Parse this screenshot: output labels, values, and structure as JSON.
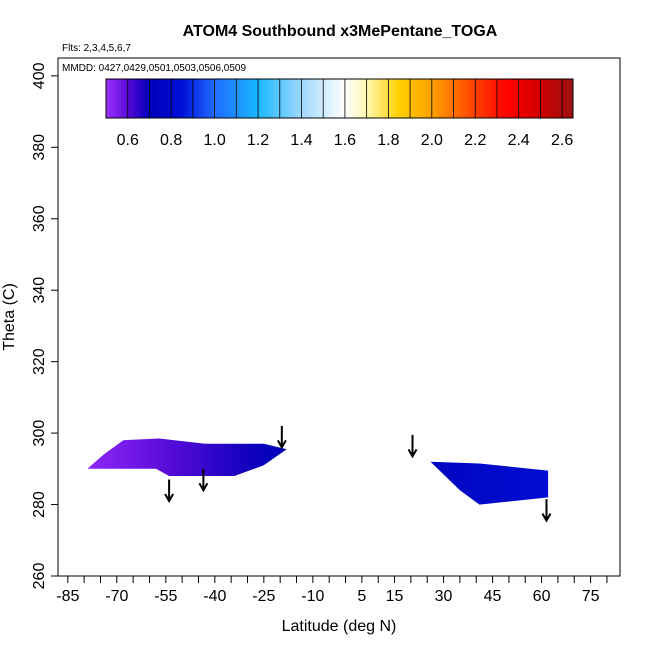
{
  "chart_data": {
    "type": "heatmap",
    "title": "ATOM4 Southbound x3MePentane_TOGA",
    "subtitle_flights": "Flts: 2,3,4,5,6,7",
    "subtitle_dates": "MMDD: 0427,0429,0501,0503,0506,0509",
    "xlabel": "Latitude (deg N)",
    "ylabel": "Theta (C)",
    "xlim": [
      -88,
      84
    ],
    "ylim": [
      260,
      405
    ],
    "x_ticks": [
      -85,
      -70,
      -55,
      -40,
      -25,
      -10,
      5,
      15,
      30,
      45,
      60,
      75
    ],
    "x_tick_labels": [
      "-85",
      "-70",
      "-55",
      "-40",
      "-25",
      "-10",
      "5",
      "15",
      "30",
      "45",
      "60",
      "75"
    ],
    "x_minor_ticks": [
      -80,
      -75,
      -65,
      -60,
      -50,
      -45,
      -35,
      -30,
      -20,
      -15,
      -5,
      0,
      10,
      20,
      25,
      35,
      40,
      50,
      55,
      65,
      70,
      80
    ],
    "y_ticks": [
      260,
      280,
      300,
      320,
      340,
      360,
      380,
      400
    ],
    "y_tick_labels": [
      "260",
      "280",
      "300",
      "320",
      "340",
      "360",
      "380",
      "400"
    ],
    "colorbar": {
      "min": 0.5,
      "max": 2.65,
      "ticks": [
        0.6,
        0.8,
        1.0,
        1.2,
        1.4,
        1.6,
        1.8,
        2.0,
        2.2,
        2.4,
        2.6
      ],
      "tick_labels": [
        "0.6",
        "0.8",
        "1.0",
        "1.2",
        "1.4",
        "1.6",
        "1.8",
        "2.0",
        "2.2",
        "2.4",
        "2.6"
      ],
      "stops": [
        {
          "v": 0.5,
          "color": "#9b30ff"
        },
        {
          "v": 0.6,
          "color": "#5a0ad8"
        },
        {
          "v": 0.7,
          "color": "#0000b8"
        },
        {
          "v": 0.85,
          "color": "#0010d8"
        },
        {
          "v": 1.0,
          "color": "#1e6cff"
        },
        {
          "v": 1.2,
          "color": "#1ab8ff"
        },
        {
          "v": 1.4,
          "color": "#9fd8ff"
        },
        {
          "v": 1.6,
          "color": "#ffffff"
        },
        {
          "v": 1.7,
          "color": "#fff7b0"
        },
        {
          "v": 1.85,
          "color": "#ffd000"
        },
        {
          "v": 2.0,
          "color": "#ffa000"
        },
        {
          "v": 2.2,
          "color": "#ff4000"
        },
        {
          "v": 2.35,
          "color": "#ff0000"
        },
        {
          "v": 2.5,
          "color": "#d00000"
        },
        {
          "v": 2.65,
          "color": "#9b1010"
        }
      ]
    },
    "regions": [
      {
        "name": "southern-hemisphere-region",
        "polygon": [
          [
            -79,
            290
          ],
          [
            -74,
            294
          ],
          [
            -68,
            298
          ],
          [
            -57,
            298.5
          ],
          [
            -43,
            297
          ],
          [
            -25,
            297
          ],
          [
            -18,
            295.5
          ],
          [
            -25,
            291
          ],
          [
            -34,
            288
          ],
          [
            -54,
            288
          ],
          [
            -58,
            290
          ]
        ],
        "value_west": 0.52,
        "value_east": 0.72
      },
      {
        "name": "northern-hemisphere-region",
        "polygon": [
          [
            26,
            292
          ],
          [
            41,
            291.5
          ],
          [
            62,
            289.5
          ],
          [
            62,
            282
          ],
          [
            41,
            280
          ],
          [
            35,
            284
          ]
        ],
        "value_west": 0.74,
        "value_east": 0.82
      }
    ],
    "flight_markers": [
      {
        "lat": -19.5,
        "theta_top": 302,
        "theta_bottom": 296
      },
      {
        "lat": -54.0,
        "theta_top": 287,
        "theta_bottom": 281
      },
      {
        "lat": -43.5,
        "theta_top": 290,
        "theta_bottom": 284
      },
      {
        "lat": 20.5,
        "theta_top": 299.5,
        "theta_bottom": 293.5
      },
      {
        "lat": 61.5,
        "theta_top": 281.5,
        "theta_bottom": 275.5
      }
    ],
    "grid": false,
    "legend": "colorbar-top-inside"
  }
}
